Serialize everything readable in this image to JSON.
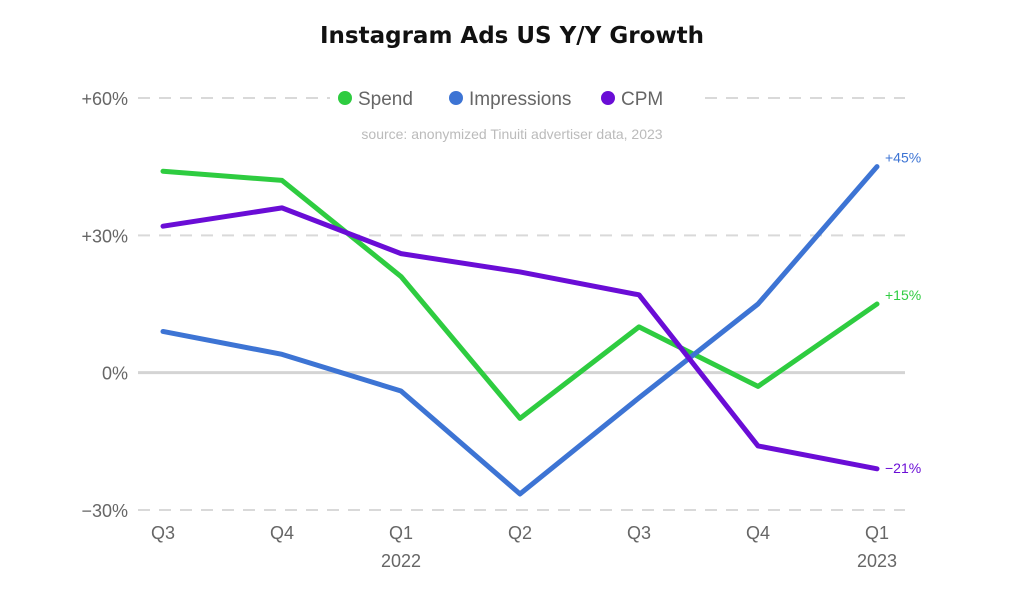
{
  "chart_data": {
    "type": "line",
    "title": "Instagram Ads US Y/Y Growth",
    "subtitle": "source: anonymized Tinuiti advertiser data, 2023",
    "xlabel": "",
    "ylabel": "",
    "categories": [
      "Q3",
      "Q4",
      "Q1",
      "Q2",
      "Q3",
      "Q4",
      "Q1"
    ],
    "category_years": [
      "",
      "",
      "2022",
      "",
      "",
      "",
      "2023"
    ],
    "yticks": [
      60,
      30,
      0,
      -30
    ],
    "ytick_labels": [
      "+60%",
      "+30%",
      "0%",
      "−30%"
    ],
    "ylim": [
      -30,
      60
    ],
    "grid": true,
    "legend_position": "top-center",
    "series": [
      {
        "name": "Spend",
        "color": "#2ecc40",
        "values": [
          44,
          42,
          21,
          -10,
          10,
          -3,
          15
        ],
        "end_label": "+15%"
      },
      {
        "name": "Impressions",
        "color": "#3d74d4",
        "values": [
          9,
          4,
          -4,
          -26.5,
          -5.5,
          15,
          45
        ],
        "end_label": "+45%"
      },
      {
        "name": "CPM",
        "color": "#6a0dd6",
        "values": [
          32,
          36,
          26,
          22,
          17,
          -16,
          -21
        ],
        "end_label": "−21%"
      }
    ]
  }
}
